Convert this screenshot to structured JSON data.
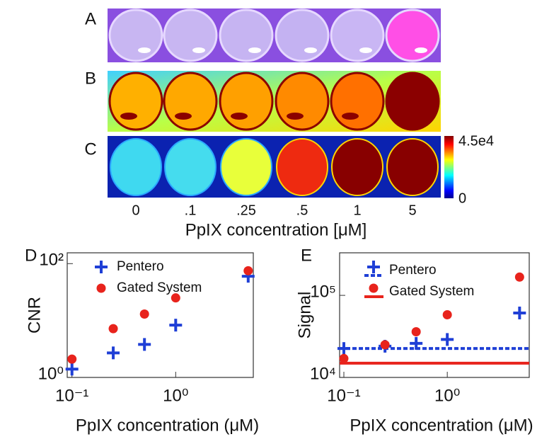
{
  "panels": {
    "row_labels": [
      "A",
      "B",
      "C"
    ],
    "column_labels": [
      "0",
      ".1",
      ".25",
      ".5",
      "1",
      "5"
    ],
    "x_label": "PpIX concentration [μM]",
    "colorbar": {
      "max_label": "4.5e4",
      "min_label": "0"
    }
  },
  "chart_data": [
    {
      "type": "scatter",
      "panel_label": "D",
      "x_label": "PpIX concentration (μM)",
      "y_label": "CNR",
      "log_x": true,
      "log_y": true,
      "x": [
        0.1,
        0.25,
        0.5,
        1,
        5
      ],
      "xlim": [
        0.09,
        5.6
      ],
      "xticks": [
        {
          "value": 0.1,
          "label": "10⁻¹"
        },
        {
          "value": 1,
          "label": "10⁰"
        }
      ],
      "ylim": [
        1,
        155
      ],
      "yticks": [
        {
          "value": 1,
          "label": "10⁰"
        },
        {
          "value": 100,
          "label": "10²"
        }
      ],
      "series": [
        {
          "name": "Pentero",
          "color": "#1f3fd6",
          "marker": "plus",
          "values": [
            1.4,
            2.7,
            3.8,
            8.3,
            60
          ]
        },
        {
          "name": "Gated System",
          "color": "#e8231c",
          "marker": "circle",
          "values": [
            2.1,
            7.2,
            13,
            25,
            75
          ]
        }
      ]
    },
    {
      "type": "scatter",
      "panel_label": "E",
      "x_label": "PpIX concentration (μM)",
      "y_label": "Signal",
      "log_x": true,
      "log_y": true,
      "x": [
        0.1,
        0.25,
        0.5,
        1,
        5
      ],
      "xlim": [
        0.091,
        6.2
      ],
      "xticks": [
        {
          "value": 0.1,
          "label": "10⁻¹"
        },
        {
          "value": 1,
          "label": "10⁰"
        }
      ],
      "ylim": [
        10000,
        330000
      ],
      "yticks": [
        {
          "value": 10000,
          "label": "10⁴"
        },
        {
          "value": 100000,
          "label": "10⁵"
        }
      ],
      "series": [
        {
          "name": "Pentero",
          "color": "#1f3fd6",
          "marker": "plus",
          "line_style": "dotted",
          "baseline": 22500,
          "values": [
            22500,
            24000,
            26000,
            29000,
            61000
          ]
        },
        {
          "name": "Gated System",
          "color": "#e8231c",
          "marker": "circle",
          "line_style": "solid",
          "baseline": 14900,
          "values": [
            17000,
            25000,
            36000,
            58000,
            167000
          ]
        }
      ]
    }
  ]
}
